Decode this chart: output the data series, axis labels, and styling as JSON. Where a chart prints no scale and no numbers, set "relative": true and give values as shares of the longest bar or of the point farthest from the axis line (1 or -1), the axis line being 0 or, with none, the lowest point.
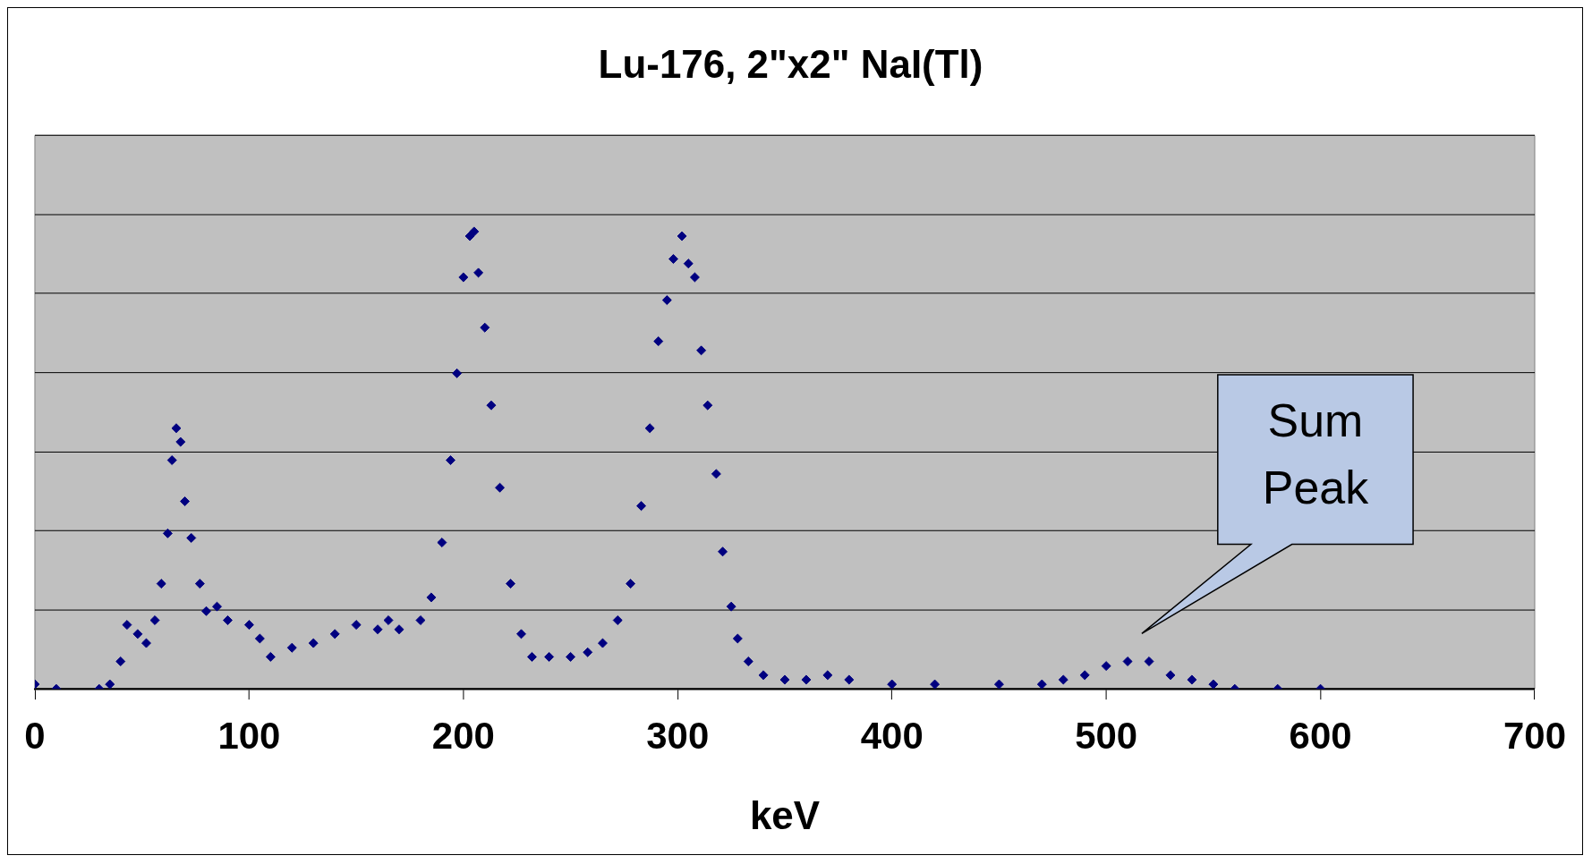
{
  "chart_data": {
    "type": "scatter",
    "title": "Lu-176, 2\"x2\" NaI(Tl)",
    "xlabel": "keV",
    "relative": true,
    "xlim": [
      0,
      700
    ],
    "xticks": [
      0,
      100,
      200,
      300,
      400,
      500,
      600,
      700
    ],
    "grid": "y",
    "legend": false,
    "marker": "diamond",
    "tick_labels": "x",
    "annotations": [
      "Sum Peak"
    ],
    "series": [
      {
        "color": "#000080",
        "x": [
          0,
          10,
          30,
          35,
          40,
          43,
          48,
          52,
          56,
          59,
          62,
          64,
          66,
          68,
          70,
          73,
          77,
          80,
          85,
          90,
          100,
          105,
          110,
          120,
          130,
          140,
          150,
          160,
          165,
          170,
          180,
          185,
          190,
          194,
          197,
          200,
          203,
          205,
          207,
          210,
          213,
          217,
          222,
          227,
          232,
          240,
          250,
          258,
          265,
          272,
          278,
          283,
          287,
          291,
          295,
          298,
          302,
          305,
          308,
          311,
          314,
          318,
          321,
          325,
          328,
          333,
          340,
          350,
          360,
          370,
          380,
          400,
          420,
          450,
          470,
          480,
          490,
          500,
          510,
          520,
          530,
          540,
          550,
          560,
          580,
          600
        ],
        "values": [
          0.01,
          0,
          0,
          0.01,
          0.06,
          0.14,
          0.12,
          0.1,
          0.15,
          0.23,
          0.34,
          0.5,
          0.57,
          0.54,
          0.41,
          0.33,
          0.23,
          0.17,
          0.18,
          0.15,
          0.14,
          0.11,
          0.07,
          0.09,
          0.1,
          0.12,
          0.14,
          0.13,
          0.15,
          0.13,
          0.15,
          0.2,
          0.32,
          0.5,
          0.69,
          0.9,
          0.99,
          1,
          0.91,
          0.79,
          0.62,
          0.44,
          0.23,
          0.12,
          0.07,
          0.07,
          0.07,
          0.08,
          0.1,
          0.15,
          0.23,
          0.4,
          0.57,
          0.76,
          0.85,
          0.94,
          0.99,
          0.93,
          0.9,
          0.74,
          0.62,
          0.47,
          0.3,
          0.18,
          0.11,
          0.06,
          0.03,
          0.02,
          0.02,
          0.03,
          0.02,
          0.01,
          0.01,
          0.01,
          0.01,
          0.02,
          0.03,
          0.05,
          0.06,
          0.06,
          0.03,
          0.02,
          0.01,
          0,
          0,
          0
        ]
      }
    ]
  }
}
